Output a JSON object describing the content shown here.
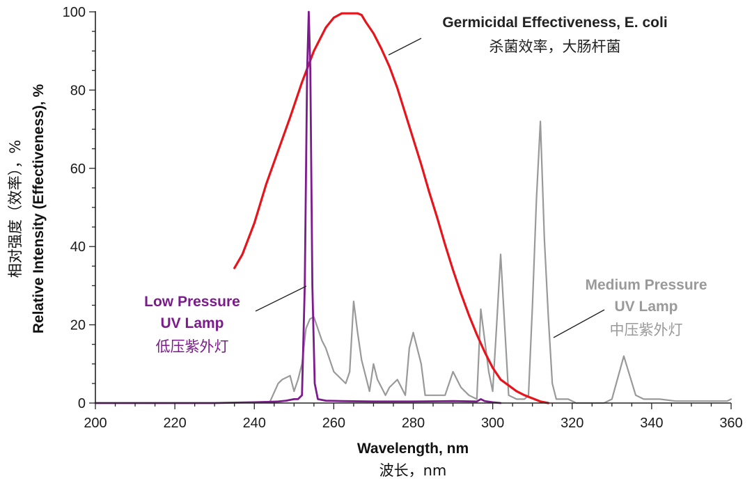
{
  "chart_data": {
    "type": "line",
    "xlabel": "Wavelength, nm",
    "xlabel_cn": "波长，nm",
    "ylabel": "Relative Intensity (Effectiveness), %",
    "ylabel_cn": "相对强度（效率），%",
    "xlim": [
      200,
      360
    ],
    "ylim": [
      0,
      100
    ],
    "x_ticks": [
      "200",
      "220",
      "240",
      "260",
      "280",
      "300",
      "320",
      "340",
      "360"
    ],
    "y_ticks": [
      "0",
      "20",
      "40",
      "60",
      "80",
      "100"
    ],
    "grid": false,
    "series": [
      {
        "name": "Germicidal Effectiveness, E. coli",
        "name_cn": "杀菌效率，大肠杆菌",
        "color": "#e8141b",
        "x": [
          235,
          237,
          240,
          243,
          246,
          249,
          252,
          255,
          258,
          260,
          262,
          264,
          266,
          267,
          268,
          270,
          272,
          274,
          276,
          278,
          280,
          282,
          284,
          286,
          288,
          290,
          292,
          294,
          296,
          298,
          300,
          302,
          304,
          306,
          308,
          310,
          312,
          314
        ],
        "y": [
          34.5,
          38,
          46,
          56,
          64.5,
          73,
          82,
          90,
          96,
          98.5,
          99.6,
          99.6,
          99.6,
          99.2,
          97.5,
          94.5,
          90.5,
          86,
          80.5,
          74,
          67.5,
          61,
          54,
          47.5,
          40.5,
          34,
          28,
          22.5,
          17.5,
          13,
          9,
          6,
          4.5,
          3,
          2,
          1.2,
          0.4,
          0
        ]
      },
      {
        "name": "Low Pressure UV Lamp",
        "name_cn": "低压紫外灯",
        "color": "#7c1c8c",
        "x": [
          200,
          230,
          240,
          244,
          246,
          248,
          249,
          250,
          251,
          252,
          252.7,
          253.3,
          253.7,
          254.1,
          254.6,
          255.2,
          256,
          258,
          262,
          270,
          280,
          290,
          296,
          297,
          298,
          300,
          302
        ],
        "y": [
          0,
          0,
          0.2,
          0.3,
          0.4,
          0.6,
          0.8,
          1,
          1,
          2,
          30,
          85,
          100,
          85,
          30,
          5,
          1,
          0.6,
          0.5,
          0.4,
          0.4,
          0.5,
          0.4,
          1,
          0.5,
          0.2,
          0
        ]
      },
      {
        "name": "Medium Pressure UV Lamp",
        "name_cn": "中压紫外灯",
        "color": "#999999",
        "x": [
          244,
          246,
          247,
          249,
          250,
          251,
          252,
          253,
          254,
          255,
          256,
          257,
          258,
          260,
          263,
          264,
          265,
          266,
          267,
          268,
          269,
          270,
          271,
          272,
          273,
          274,
          275,
          276,
          277,
          278,
          279,
          280,
          281,
          282,
          283,
          285,
          288,
          290,
          292,
          294,
          296,
          297,
          298,
          299,
          300,
          301,
          302,
          303,
          304,
          306,
          308,
          309,
          310,
          311,
          312,
          313,
          314,
          315,
          316,
          317,
          319,
          321,
          323,
          326,
          328,
          330,
          333,
          336,
          338,
          342,
          346,
          350,
          355,
          359,
          360
        ],
        "y": [
          0.5,
          5,
          6,
          7,
          3,
          6,
          10,
          19,
          21.5,
          22,
          19,
          16,
          14,
          8,
          5,
          8,
          26,
          18,
          11,
          7,
          3,
          10,
          6,
          4,
          2,
          4,
          5,
          6,
          4,
          2,
          14,
          18,
          14,
          10,
          2,
          2,
          2,
          8,
          4,
          2,
          1,
          24,
          16,
          8,
          3,
          20,
          38,
          20,
          2,
          1,
          1,
          2,
          25,
          52,
          72,
          42,
          22,
          5,
          1,
          1,
          1,
          0,
          0,
          0,
          0,
          1,
          12,
          2,
          1,
          1,
          0.5,
          0.5,
          0.5,
          0.5,
          1
        ]
      }
    ],
    "annotations": {
      "low": [
        "Low Pressure",
        "UV Lamp"
      ],
      "medium": [
        "Medium Pressure",
        "UV Lamp"
      ]
    }
  }
}
